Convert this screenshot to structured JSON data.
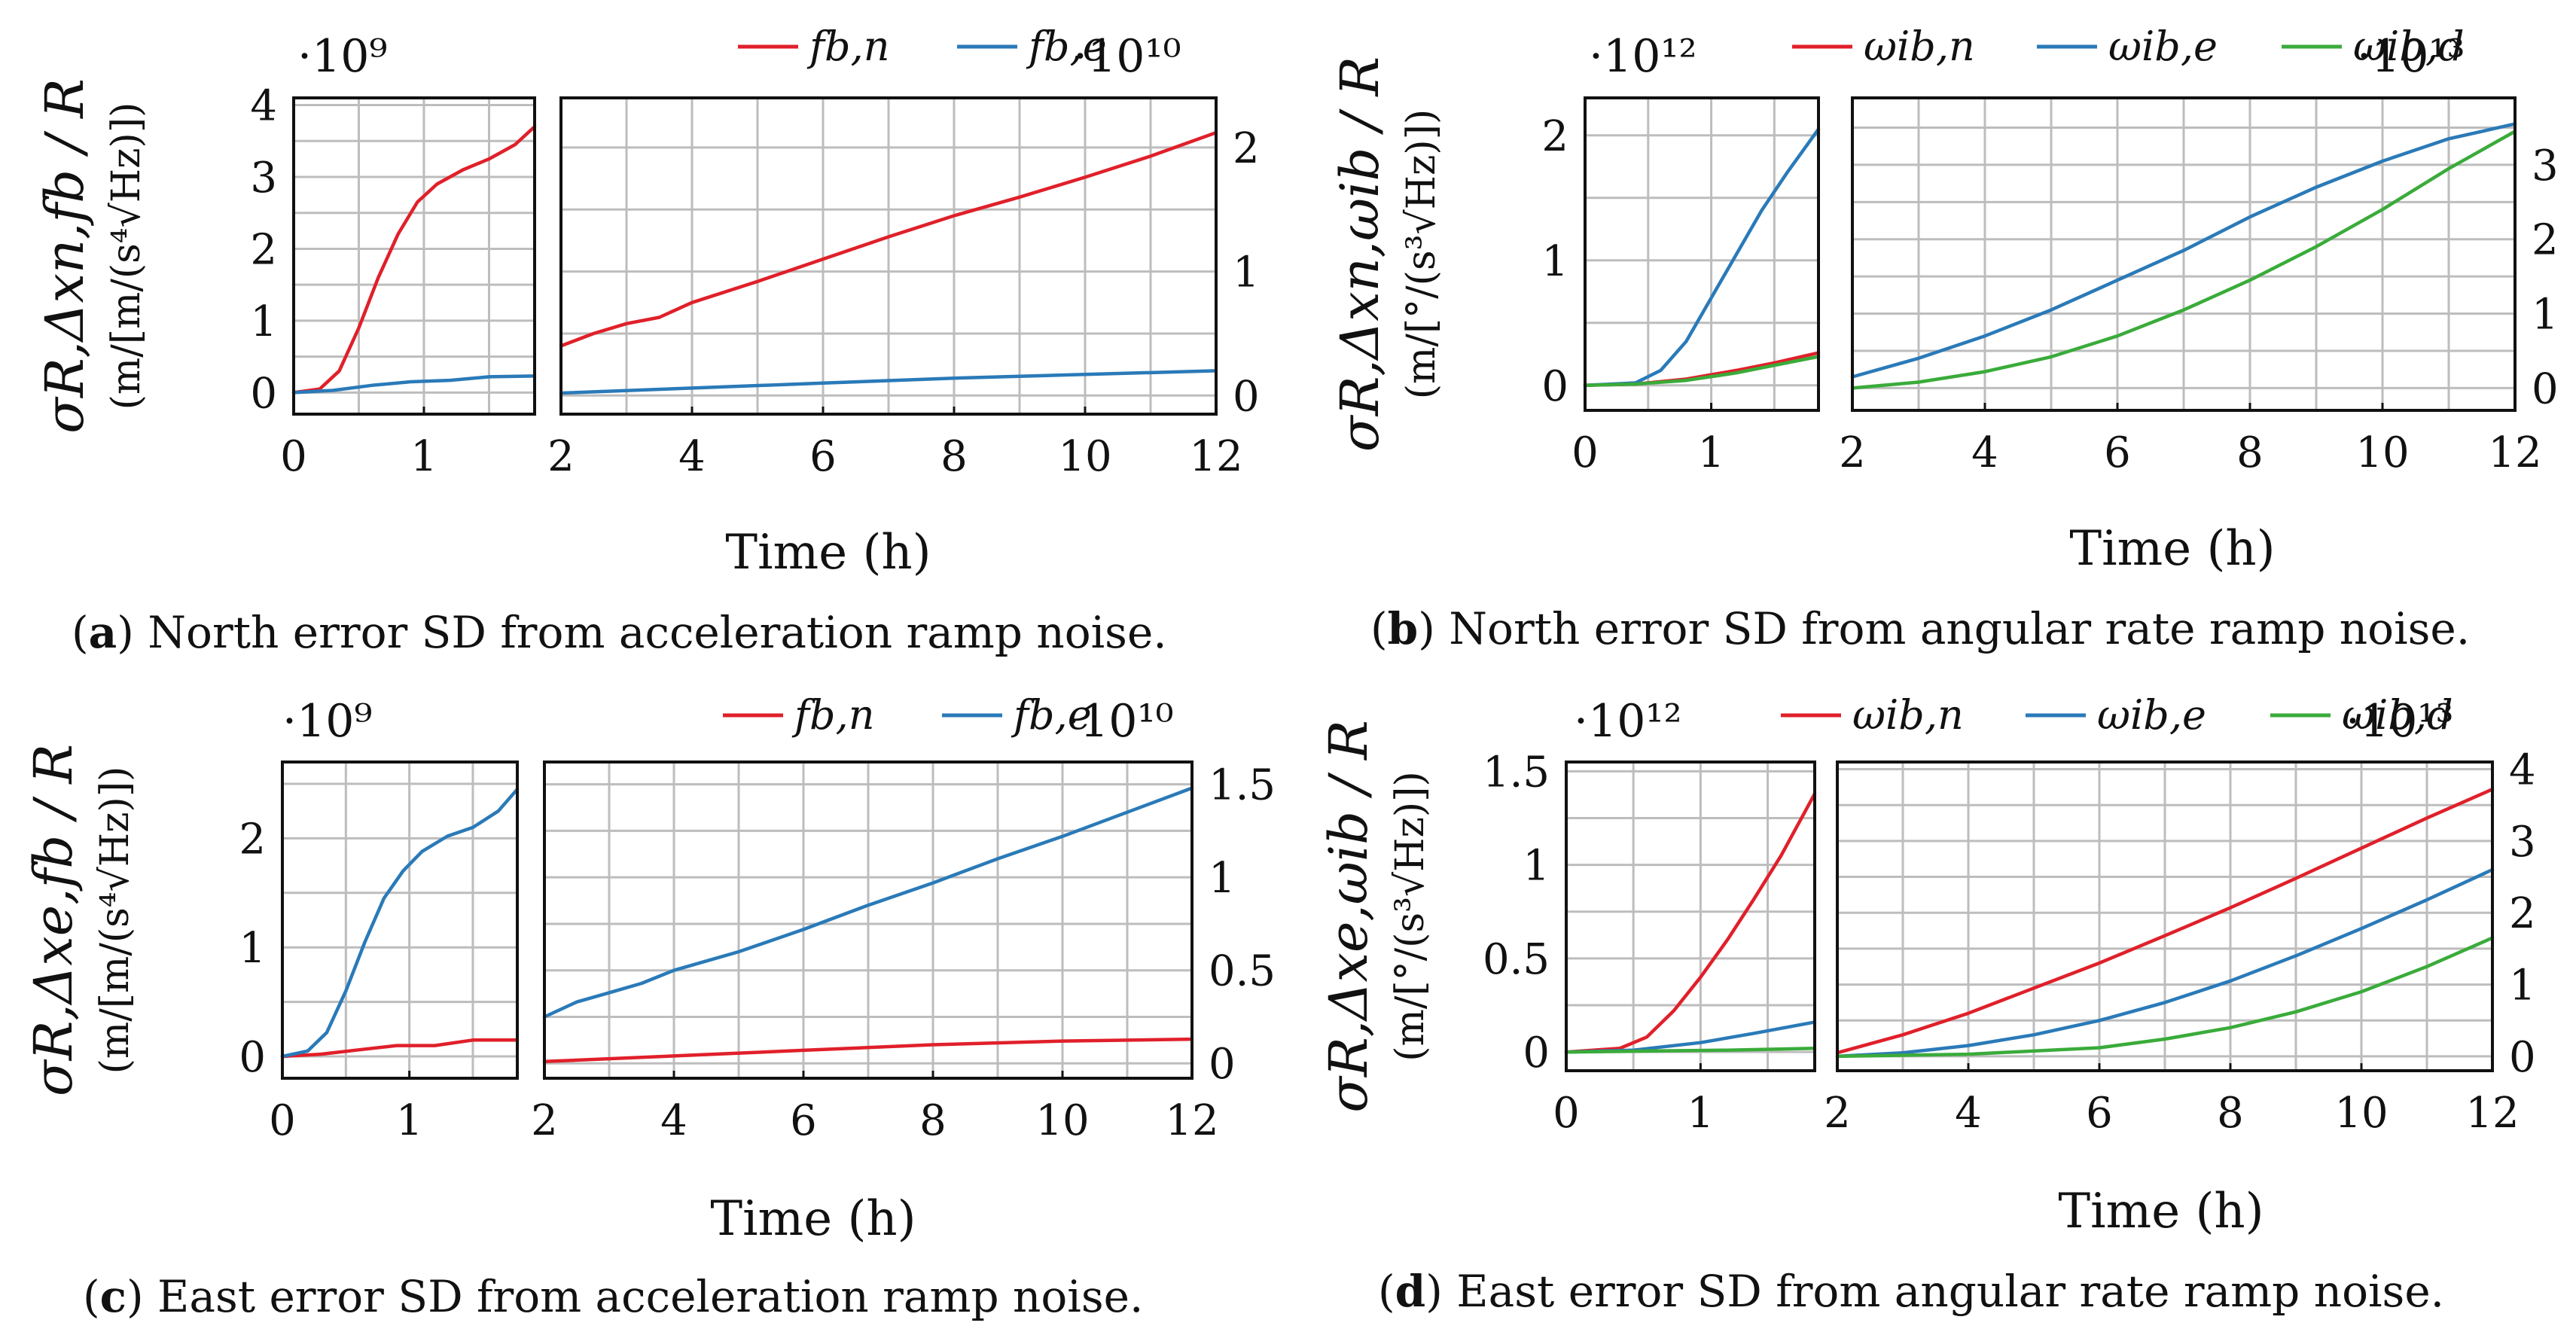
{
  "colors": {
    "red": "#e0202a",
    "blue": "#2a7ab8",
    "green": "#3aab3a"
  },
  "chart_data": [
    {
      "type": "line",
      "caption_letter": "a",
      "caption_text": " North error SD from acceleration ramp noise.",
      "xlabel": "Time (h)",
      "ylabel": "σR,Δxn,fb / R",
      "yunit": "(m/[m/(s⁴√Hz)])",
      "legend": [
        {
          "name": "fb,n",
          "color": "red"
        },
        {
          "name": "fb,e",
          "color": "blue"
        }
      ],
      "left_panel": {
        "multiplier": "·10⁹",
        "xlim": [
          0,
          1.85
        ],
        "ylim": [
          -0.3,
          4.1
        ],
        "xticks": [
          "0",
          "1"
        ],
        "xtick_values": [
          0,
          1
        ],
        "yticks": [
          "0",
          "1",
          "2",
          "3",
          "4"
        ],
        "ytick_values": [
          0,
          1,
          2,
          3,
          4
        ],
        "series": [
          {
            "name": "fb,n",
            "color": "red",
            "x": [
              0,
              0.2,
              0.35,
              0.5,
              0.65,
              0.8,
              0.95,
              1.1,
              1.3,
              1.5,
              1.7,
              1.85
            ],
            "y": [
              0,
              0.05,
              0.3,
              0.9,
              1.6,
              2.2,
              2.65,
              2.9,
              3.1,
              3.25,
              3.45,
              3.7
            ]
          },
          {
            "name": "fb,e",
            "color": "blue",
            "x": [
              0,
              0.3,
              0.6,
              0.9,
              1.2,
              1.5,
              1.85
            ],
            "y": [
              0,
              0.03,
              0.1,
              0.15,
              0.17,
              0.22,
              0.23
            ]
          }
        ]
      },
      "right_panel": {
        "multiplier": "·10¹⁰",
        "xlim": [
          2,
          12
        ],
        "ylim": [
          -0.15,
          2.4
        ],
        "xticks": [
          "2",
          "4",
          "6",
          "8",
          "10",
          "12"
        ],
        "xtick_values": [
          2,
          4,
          6,
          8,
          10,
          12
        ],
        "yticks": [
          "0",
          "1",
          "2"
        ],
        "ytick_values": [
          0,
          1,
          2
        ],
        "series": [
          {
            "name": "fb,n",
            "color": "red",
            "x": [
              2,
              2.5,
              3,
              3.5,
              4,
              5,
              6,
              7,
              8,
              9,
              10,
              11,
              12
            ],
            "y": [
              0.4,
              0.5,
              0.58,
              0.63,
              0.75,
              0.92,
              1.1,
              1.28,
              1.45,
              1.6,
              1.76,
              1.93,
              2.12
            ]
          },
          {
            "name": "fb,e",
            "color": "blue",
            "x": [
              2,
              4,
              6,
              8,
              10,
              12
            ],
            "y": [
              0.02,
              0.06,
              0.1,
              0.14,
              0.17,
              0.2
            ]
          }
        ]
      }
    },
    {
      "type": "line",
      "caption_letter": "b",
      "caption_text": " North error SD from angular rate ramp noise.",
      "xlabel": "Time (h)",
      "ylabel": "σR,Δxn,ωib / R",
      "yunit": "(m/[°/(s³√Hz)])",
      "legend": [
        {
          "name": "ωib,n",
          "color": "red"
        },
        {
          "name": "ωib,e",
          "color": "blue"
        },
        {
          "name": "ωib,d",
          "color": "green"
        }
      ],
      "left_panel": {
        "multiplier": "·10¹²",
        "xlim": [
          0,
          1.85
        ],
        "ylim": [
          -0.2,
          2.3
        ],
        "xticks": [
          "0",
          "1"
        ],
        "xtick_values": [
          0,
          1
        ],
        "yticks": [
          "0",
          "1",
          "2"
        ],
        "ytick_values": [
          0,
          1,
          2
        ],
        "series": [
          {
            "name": "ωib,n",
            "color": "red",
            "x": [
              0,
              0.4,
              0.8,
              1.2,
              1.5,
              1.85
            ],
            "y": [
              0,
              0.01,
              0.05,
              0.12,
              0.18,
              0.26
            ]
          },
          {
            "name": "ωib,e",
            "color": "blue",
            "x": [
              0,
              0.4,
              0.6,
              0.8,
              1.0,
              1.2,
              1.4,
              1.6,
              1.85
            ],
            "y": [
              0,
              0.02,
              0.12,
              0.35,
              0.7,
              1.05,
              1.4,
              1.7,
              2.05
            ]
          },
          {
            "name": "ωib,d",
            "color": "green",
            "x": [
              0,
              0.4,
              0.8,
              1.2,
              1.5,
              1.85
            ],
            "y": [
              0,
              0.01,
              0.04,
              0.1,
              0.16,
              0.23
            ]
          }
        ]
      },
      "right_panel": {
        "multiplier": "·10¹³",
        "xlim": [
          2,
          12
        ],
        "ylim": [
          -0.3,
          3.9
        ],
        "xticks": [
          "2",
          "4",
          "6",
          "8",
          "10",
          "12"
        ],
        "xtick_values": [
          2,
          4,
          6,
          8,
          10,
          12
        ],
        "yticks": [
          "0",
          "1",
          "2",
          "3"
        ],
        "ytick_values": [
          0,
          1,
          2,
          3
        ],
        "series": [
          {
            "name": "ωib,e",
            "color": "blue",
            "x": [
              2,
              3,
              4,
              5,
              6,
              7,
              8,
              9,
              10,
              11,
              12
            ],
            "y": [
              0.15,
              0.4,
              0.7,
              1.05,
              1.45,
              1.85,
              2.3,
              2.7,
              3.05,
              3.35,
              3.55
            ]
          },
          {
            "name": "ωib,d",
            "color": "green",
            "x": [
              2,
              3,
              4,
              5,
              6,
              7,
              8,
              9,
              10,
              11,
              12
            ],
            "y": [
              0,
              0.08,
              0.22,
              0.42,
              0.7,
              1.05,
              1.45,
              1.9,
              2.4,
              2.95,
              3.45
            ]
          }
        ]
      }
    },
    {
      "type": "line",
      "caption_letter": "c",
      "caption_text": " East error SD from acceleration ramp noise.",
      "xlabel": "Time (h)",
      "ylabel": "σR,Δxe,fb / R",
      "yunit": "(m/[m/(s⁴√Hz)])",
      "legend": [
        {
          "name": "fb,n",
          "color": "red"
        },
        {
          "name": "fb,e",
          "color": "blue"
        }
      ],
      "left_panel": {
        "multiplier": "·10⁹",
        "xlim": [
          0,
          1.85
        ],
        "ylim": [
          -0.2,
          2.7
        ],
        "xticks": [
          "0",
          "1"
        ],
        "xtick_values": [
          0,
          1
        ],
        "yticks": [
          "0",
          "1",
          "2"
        ],
        "ytick_values": [
          0,
          1,
          2
        ],
        "series": [
          {
            "name": "fb,n",
            "color": "red",
            "x": [
              0,
              0.3,
              0.6,
              0.9,
              1.2,
              1.5,
              1.85
            ],
            "y": [
              0,
              0.02,
              0.06,
              0.1,
              0.1,
              0.15,
              0.15
            ]
          },
          {
            "name": "fb,e",
            "color": "blue",
            "x": [
              0,
              0.2,
              0.35,
              0.5,
              0.65,
              0.8,
              0.95,
              1.1,
              1.3,
              1.5,
              1.7,
              1.85
            ],
            "y": [
              0,
              0.05,
              0.22,
              0.6,
              1.05,
              1.45,
              1.7,
              1.88,
              2.02,
              2.1,
              2.25,
              2.45
            ]
          }
        ]
      },
      "right_panel": {
        "multiplier": "·10¹⁰",
        "xlim": [
          2,
          12
        ],
        "ylim": [
          -0.08,
          1.62
        ],
        "xticks": [
          "2",
          "4",
          "6",
          "8",
          "10",
          "12"
        ],
        "xtick_values": [
          2,
          4,
          6,
          8,
          10,
          12
        ],
        "yticks": [
          "0",
          "0.5",
          "1",
          "1.5"
        ],
        "ytick_values": [
          0,
          0.5,
          1,
          1.5
        ],
        "series": [
          {
            "name": "fb,n",
            "color": "red",
            "x": [
              2,
              4,
              6,
              8,
              10,
              12
            ],
            "y": [
              0.01,
              0.04,
              0.07,
              0.1,
              0.12,
              0.13
            ]
          },
          {
            "name": "fb,e",
            "color": "blue",
            "x": [
              2,
              2.5,
              3,
              3.5,
              4,
              5,
              6,
              7,
              8,
              9,
              10,
              11,
              12
            ],
            "y": [
              0.25,
              0.33,
              0.38,
              0.43,
              0.5,
              0.6,
              0.72,
              0.85,
              0.97,
              1.1,
              1.22,
              1.35,
              1.48
            ]
          }
        ]
      }
    },
    {
      "type": "line",
      "caption_letter": "d",
      "caption_text": " East error SD from angular rate ramp noise.",
      "xlabel": "Time (h)",
      "ylabel": "σR,Δxe,ωib / R",
      "yunit": "(m/[°/(s³√Hz)])",
      "legend": [
        {
          "name": "ωib,n",
          "color": "red"
        },
        {
          "name": "ωib,e",
          "color": "blue"
        },
        {
          "name": "ωib,d",
          "color": "green"
        }
      ],
      "left_panel": {
        "multiplier": "·10¹²",
        "xlim": [
          0,
          1.85
        ],
        "ylim": [
          -0.1,
          1.55
        ],
        "xticks": [
          "0",
          "1"
        ],
        "xtick_values": [
          0,
          1
        ],
        "yticks": [
          "0",
          "0.5",
          "1",
          "1.5"
        ],
        "ytick_values": [
          0,
          0.5,
          1,
          1.5
        ],
        "series": [
          {
            "name": "ωib,n",
            "color": "red",
            "x": [
              0,
              0.4,
              0.6,
              0.8,
              1.0,
              1.2,
              1.4,
              1.6,
              1.85
            ],
            "y": [
              0,
              0.02,
              0.08,
              0.22,
              0.4,
              0.6,
              0.82,
              1.05,
              1.38
            ]
          },
          {
            "name": "ωib,e",
            "color": "blue",
            "x": [
              0,
              0.5,
              1.0,
              1.4,
              1.85
            ],
            "y": [
              0,
              0.01,
              0.05,
              0.1,
              0.16
            ]
          },
          {
            "name": "ωib,d",
            "color": "green",
            "x": [
              0,
              0.6,
              1.2,
              1.85
            ],
            "y": [
              0,
              0.005,
              0.01,
              0.02
            ]
          }
        ]
      },
      "right_panel": {
        "multiplier": "·10¹³",
        "xlim": [
          2,
          12
        ],
        "ylim": [
          -0.2,
          4.1
        ],
        "xticks": [
          "2",
          "4",
          "6",
          "8",
          "10",
          "12"
        ],
        "xtick_values": [
          2,
          4,
          6,
          8,
          10,
          12
        ],
        "yticks": [
          "0",
          "1",
          "2",
          "3",
          "4"
        ],
        "ytick_values": [
          0,
          1,
          2,
          3,
          4
        ],
        "series": [
          {
            "name": "ωib,n",
            "color": "red",
            "x": [
              2,
              3,
              4,
              5,
              6,
              7,
              8,
              9,
              10,
              11,
              12
            ],
            "y": [
              0.05,
              0.3,
              0.6,
              0.95,
              1.3,
              1.68,
              2.07,
              2.48,
              2.9,
              3.32,
              3.72
            ]
          },
          {
            "name": "ωib,e",
            "color": "blue",
            "x": [
              2,
              3,
              4,
              5,
              6,
              7,
              8,
              9,
              10,
              11,
              12
            ],
            "y": [
              0,
              0.05,
              0.15,
              0.3,
              0.5,
              0.75,
              1.05,
              1.4,
              1.78,
              2.18,
              2.6
            ]
          },
          {
            "name": "ωib,d",
            "color": "green",
            "x": [
              2,
              4,
              6,
              7,
              8,
              9,
              10,
              11,
              12
            ],
            "y": [
              0,
              0.03,
              0.12,
              0.24,
              0.4,
              0.62,
              0.9,
              1.25,
              1.65
            ]
          }
        ]
      }
    }
  ]
}
